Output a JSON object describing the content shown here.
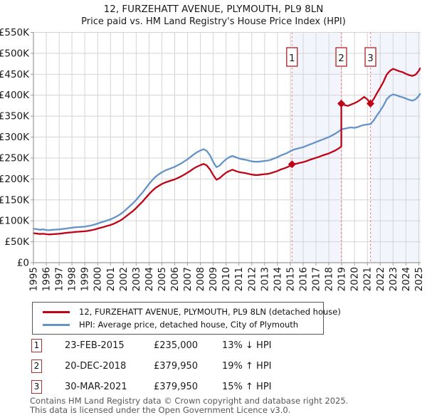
{
  "chart_data": {
    "type": "line",
    "title": "12, FURZEHATT AVENUE, PLYMOUTH, PL9 8LN",
    "subtitle": "Price paid vs. HM Land Registry's House Price Index (HPI)",
    "xlabel": "",
    "ylabel": "",
    "grid": true,
    "legend_position": "bottom",
    "x_range": [
      1995,
      2025
    ],
    "y_range_thousands": [
      0,
      550
    ],
    "y_tick_labels": [
      "£0",
      "£50K",
      "£100K",
      "£150K",
      "£200K",
      "£250K",
      "£300K",
      "£350K",
      "£400K",
      "£450K",
      "£500K",
      "£550K"
    ],
    "x_tick_labels": [
      "1995",
      "1996",
      "1997",
      "1998",
      "1999",
      "2000",
      "2001",
      "2002",
      "2003",
      "2004",
      "2005",
      "2006",
      "2007",
      "2008",
      "2009",
      "2010",
      "2011",
      "2012",
      "2013",
      "2014",
      "2015",
      "2016",
      "2017",
      "2018",
      "2019",
      "2020",
      "2021",
      "2022",
      "2023",
      "2024",
      "2025"
    ],
    "series": [
      {
        "name": "12, FURZEHATT AVENUE, PLYMOUTH, PL9 8LN (detached house)",
        "color": "#c00418",
        "points": [
          [
            1995,
            70.5
          ],
          [
            1995.25,
            69.5
          ],
          [
            1995.5,
            68.5
          ],
          [
            1995.75,
            69
          ],
          [
            1996,
            68
          ],
          [
            1996.25,
            67.5
          ],
          [
            1996.5,
            68
          ],
          [
            1996.75,
            68.5
          ],
          [
            1997,
            69
          ],
          [
            1997.25,
            70
          ],
          [
            1997.5,
            71
          ],
          [
            1997.75,
            72
          ],
          [
            1998,
            72.5
          ],
          [
            1998.25,
            73.5
          ],
          [
            1998.5,
            74
          ],
          [
            1998.75,
            74.5
          ],
          [
            1999,
            75
          ],
          [
            1999.25,
            76
          ],
          [
            1999.5,
            77.5
          ],
          [
            1999.75,
            79
          ],
          [
            2000,
            81.5
          ],
          [
            2000.25,
            83.5
          ],
          [
            2000.5,
            85.5
          ],
          [
            2000.75,
            88
          ],
          [
            2001,
            90
          ],
          [
            2001.25,
            93
          ],
          [
            2001.5,
            96.5
          ],
          [
            2001.75,
            100.5
          ],
          [
            2002,
            105.5
          ],
          [
            2002.25,
            111.5
          ],
          [
            2002.5,
            117.5
          ],
          [
            2002.75,
            123.5
          ],
          [
            2003,
            130.5
          ],
          [
            2003.25,
            138.5
          ],
          [
            2003.5,
            146
          ],
          [
            2003.75,
            155
          ],
          [
            2004,
            163.5
          ],
          [
            2004.25,
            171.5
          ],
          [
            2004.5,
            178.5
          ],
          [
            2004.75,
            183.5
          ],
          [
            2005,
            188
          ],
          [
            2005.25,
            191.5
          ],
          [
            2005.5,
            194
          ],
          [
            2005.75,
            196.5
          ],
          [
            2006,
            199
          ],
          [
            2006.25,
            202.5
          ],
          [
            2006.5,
            206
          ],
          [
            2006.75,
            210.5
          ],
          [
            2007,
            215
          ],
          [
            2007.25,
            220
          ],
          [
            2007.5,
            225.5
          ],
          [
            2007.75,
            229.5
          ],
          [
            2008,
            233
          ],
          [
            2008.25,
            236
          ],
          [
            2008.5,
            232
          ],
          [
            2008.75,
            222.5
          ],
          [
            2009,
            209
          ],
          [
            2009.25,
            198
          ],
          [
            2009.5,
            202
          ],
          [
            2009.75,
            209
          ],
          [
            2010,
            215
          ],
          [
            2010.25,
            219
          ],
          [
            2010.5,
            222
          ],
          [
            2010.75,
            219
          ],
          [
            2011,
            216.5
          ],
          [
            2011.25,
            215
          ],
          [
            2011.5,
            214
          ],
          [
            2011.75,
            212
          ],
          [
            2012,
            210.5
          ],
          [
            2012.25,
            209.5
          ],
          [
            2012.5,
            209.5
          ],
          [
            2012.75,
            210.5
          ],
          [
            2013,
            211.5
          ],
          [
            2013.25,
            212
          ],
          [
            2013.5,
            214
          ],
          [
            2013.75,
            216.5
          ],
          [
            2014,
            219
          ],
          [
            2014.25,
            222.5
          ],
          [
            2014.5,
            225
          ],
          [
            2014.75,
            228
          ],
          [
            2015,
            231.5
          ],
          [
            2015.13,
            235
          ],
          [
            2015.25,
            235
          ],
          [
            2015.5,
            236.5
          ],
          [
            2015.75,
            238.5
          ],
          [
            2016,
            240
          ],
          [
            2016.25,
            242.5
          ],
          [
            2016.5,
            245.5
          ],
          [
            2016.75,
            248
          ],
          [
            2017,
            250.5
          ],
          [
            2017.25,
            253
          ],
          [
            2017.5,
            256
          ],
          [
            2017.75,
            258.5
          ],
          [
            2018,
            261
          ],
          [
            2018.25,
            264.5
          ],
          [
            2018.5,
            268
          ],
          [
            2018.75,
            272.5
          ],
          [
            2018.97,
            277.5
          ],
          [
            2018.97,
            379.95
          ],
          [
            2019.25,
            376
          ],
          [
            2019.5,
            374.5
          ],
          [
            2019.75,
            378
          ],
          [
            2020,
            381
          ],
          [
            2020.25,
            385
          ],
          [
            2020.5,
            390
          ],
          [
            2020.75,
            396
          ],
          [
            2021,
            390
          ],
          [
            2021.24,
            379.95
          ],
          [
            2021.5,
            391
          ],
          [
            2021.75,
            405
          ],
          [
            2022,
            418
          ],
          [
            2022.25,
            432
          ],
          [
            2022.5,
            449
          ],
          [
            2022.75,
            458
          ],
          [
            2023,
            463
          ],
          [
            2023.25,
            460
          ],
          [
            2023.5,
            457
          ],
          [
            2023.75,
            455
          ],
          [
            2024,
            451
          ],
          [
            2024.25,
            448
          ],
          [
            2024.5,
            446
          ],
          [
            2024.75,
            449
          ],
          [
            2025,
            458
          ],
          [
            2025.1,
            464
          ]
        ]
      },
      {
        "name": "HPI: Average price, detached house, City of Plymouth",
        "color": "#6593c8",
        "points": [
          [
            1995,
            81
          ],
          [
            1995.25,
            80
          ],
          [
            1995.5,
            78.5
          ],
          [
            1995.75,
            79.5
          ],
          [
            1996,
            78
          ],
          [
            1996.25,
            77.5
          ],
          [
            1996.5,
            78.5
          ],
          [
            1996.75,
            79
          ],
          [
            1997,
            79.5
          ],
          [
            1997.25,
            80.5
          ],
          [
            1997.5,
            81.5
          ],
          [
            1997.75,
            82.5
          ],
          [
            1998,
            83.5
          ],
          [
            1998.25,
            84.5
          ],
          [
            1998.5,
            85
          ],
          [
            1998.75,
            85.5
          ],
          [
            1999,
            86
          ],
          [
            1999.25,
            87.5
          ],
          [
            1999.5,
            89
          ],
          [
            1999.75,
            91
          ],
          [
            2000,
            93.5
          ],
          [
            2000.25,
            96
          ],
          [
            2000.5,
            98.5
          ],
          [
            2000.75,
            101
          ],
          [
            2001,
            103.5
          ],
          [
            2001.25,
            107
          ],
          [
            2001.5,
            111
          ],
          [
            2001.75,
            115.5
          ],
          [
            2002,
            121
          ],
          [
            2002.25,
            128
          ],
          [
            2002.5,
            135
          ],
          [
            2002.75,
            142
          ],
          [
            2003,
            150
          ],
          [
            2003.25,
            159
          ],
          [
            2003.5,
            168
          ],
          [
            2003.75,
            178
          ],
          [
            2004,
            188
          ],
          [
            2004.25,
            197
          ],
          [
            2004.5,
            205
          ],
          [
            2004.75,
            211
          ],
          [
            2005,
            216
          ],
          [
            2005.25,
            220
          ],
          [
            2005.5,
            223
          ],
          [
            2005.75,
            226
          ],
          [
            2006,
            229
          ],
          [
            2006.25,
            233
          ],
          [
            2006.5,
            237
          ],
          [
            2006.75,
            242
          ],
          [
            2007,
            247
          ],
          [
            2007.25,
            253
          ],
          [
            2007.5,
            259
          ],
          [
            2007.75,
            264
          ],
          [
            2008,
            268
          ],
          [
            2008.25,
            271
          ],
          [
            2008.5,
            267
          ],
          [
            2008.75,
            256
          ],
          [
            2009,
            240
          ],
          [
            2009.25,
            228
          ],
          [
            2009.5,
            232
          ],
          [
            2009.75,
            240
          ],
          [
            2010,
            247
          ],
          [
            2010.25,
            252
          ],
          [
            2010.5,
            255
          ],
          [
            2010.75,
            252
          ],
          [
            2011,
            249
          ],
          [
            2011.25,
            247
          ],
          [
            2011.5,
            246
          ],
          [
            2011.75,
            244
          ],
          [
            2012,
            242
          ],
          [
            2012.25,
            241
          ],
          [
            2012.5,
            241
          ],
          [
            2012.75,
            242
          ],
          [
            2013,
            243
          ],
          [
            2013.25,
            244
          ],
          [
            2013.5,
            246
          ],
          [
            2013.75,
            249
          ],
          [
            2014,
            252
          ],
          [
            2014.25,
            256
          ],
          [
            2014.5,
            259
          ],
          [
            2014.75,
            262
          ],
          [
            2015,
            266
          ],
          [
            2015.25,
            270
          ],
          [
            2015.5,
            272
          ],
          [
            2015.75,
            274
          ],
          [
            2016,
            276
          ],
          [
            2016.25,
            279
          ],
          [
            2016.5,
            282
          ],
          [
            2016.75,
            285
          ],
          [
            2017,
            288
          ],
          [
            2017.25,
            291
          ],
          [
            2017.5,
            294
          ],
          [
            2017.75,
            297
          ],
          [
            2018,
            300
          ],
          [
            2018.25,
            304
          ],
          [
            2018.5,
            308
          ],
          [
            2018.75,
            313
          ],
          [
            2019,
            319
          ],
          [
            2019.25,
            320
          ],
          [
            2019.5,
            322
          ],
          [
            2019.75,
            323
          ],
          [
            2020,
            322
          ],
          [
            2020.25,
            324
          ],
          [
            2020.5,
            327
          ],
          [
            2020.75,
            329
          ],
          [
            2021,
            330
          ],
          [
            2021.25,
            331
          ],
          [
            2021.5,
            340
          ],
          [
            2021.75,
            352
          ],
          [
            2022,
            363
          ],
          [
            2022.25,
            375
          ],
          [
            2022.5,
            390
          ],
          [
            2022.75,
            398
          ],
          [
            2023,
            402
          ],
          [
            2023.25,
            400
          ],
          [
            2023.5,
            397
          ],
          [
            2023.75,
            395
          ],
          [
            2024,
            392
          ],
          [
            2024.25,
            389
          ],
          [
            2024.5,
            387
          ],
          [
            2024.75,
            390
          ],
          [
            2025,
            398
          ],
          [
            2025.1,
            403
          ]
        ]
      }
    ],
    "sales": [
      {
        "label": "1",
        "date": "23-FEB-2015",
        "price": "£235,000",
        "hpi_diff": "13% ↓ HPI",
        "year": 2015.13,
        "value_thousands": 235
      },
      {
        "label": "2",
        "date": "20-DEC-2018",
        "price": "£379,950",
        "hpi_diff": "19% ↑ HPI",
        "year": 2018.97,
        "value_thousands": 379.95
      },
      {
        "label": "3",
        "date": "30-MAR-2021",
        "price": "£379,950",
        "hpi_diff": "15% ↑ HPI",
        "year": 2021.24,
        "value_thousands": 379.95
      }
    ],
    "shaded_bands_years": [
      [
        2015.13,
        2018.97
      ],
      [
        2021.24,
        2025.17
      ]
    ],
    "colors": {
      "band": "#f2f5fc",
      "grid": "#d4d4d4",
      "spine": "#9a9a9a",
      "dashed_line": "#ee8585",
      "marker_box_border": "#b03030"
    }
  },
  "footer": {
    "line1": "Contains HM Land Registry data © Crown copyright and database right 2025.",
    "line2": "This data is licensed under the Open Government Licence v3.0."
  }
}
